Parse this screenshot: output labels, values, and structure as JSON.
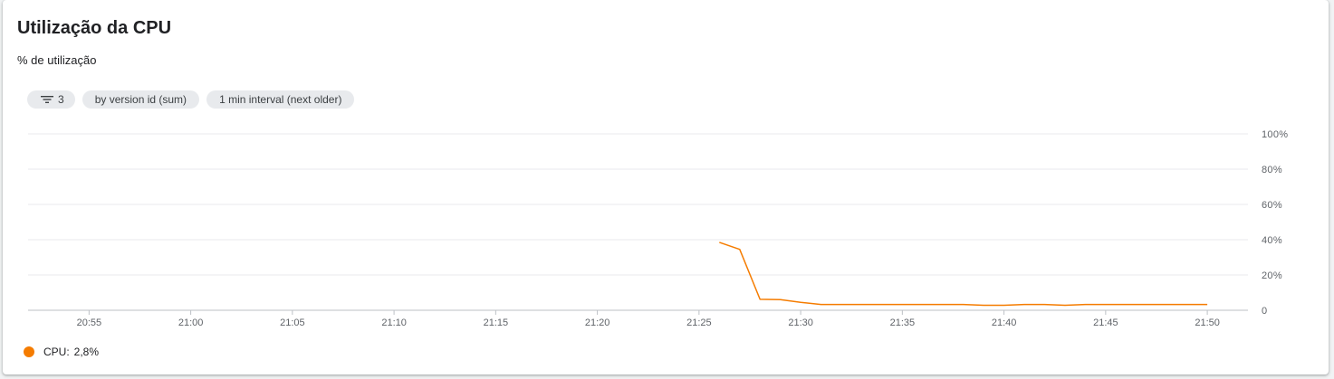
{
  "header": {
    "title": "Utilização da CPU",
    "subtitle": "% de utilização"
  },
  "chips": {
    "filter_count": "3",
    "group_by": "by version id (sum)",
    "interval": "1 min interval (next older)"
  },
  "legend": {
    "label": "CPU:",
    "value": "2,8%",
    "color": "#f57c00"
  },
  "colors": {
    "series": "#f57c00",
    "grid": "#e8eaed",
    "axis": "#bdc1c6"
  },
  "chart_data": {
    "type": "line",
    "x_tick_labels": [
      "20:55",
      "21:00",
      "21:05",
      "21:10",
      "21:15",
      "21:20",
      "21:25",
      "21:30",
      "21:35",
      "21:40",
      "21:45",
      "21:50"
    ],
    "y_tick_labels": [
      "100%",
      "80%",
      "60%",
      "40%",
      "20%",
      "0"
    ],
    "y_ticks": [
      100,
      80,
      60,
      40,
      20,
      0
    ],
    "xlim": [
      "20:52",
      "21:52"
    ],
    "ylim": [
      0,
      100
    ],
    "grid": true,
    "legend_position": "bottom-left",
    "series": [
      {
        "name": "CPU",
        "color": "#f57c00",
        "points": [
          [
            "21:26",
            38.5
          ],
          [
            "21:27",
            34.5
          ],
          [
            "21:28",
            6.2
          ],
          [
            "21:29",
            6.0
          ],
          [
            "21:30",
            4.5
          ],
          [
            "21:31",
            3.3
          ],
          [
            "21:32",
            3.3
          ],
          [
            "21:33",
            3.3
          ],
          [
            "21:34",
            3.3
          ],
          [
            "21:35",
            3.3
          ],
          [
            "21:36",
            3.3
          ],
          [
            "21:37",
            3.3
          ],
          [
            "21:38",
            3.3
          ],
          [
            "21:39",
            2.8
          ],
          [
            "21:40",
            2.8
          ],
          [
            "21:41",
            3.3
          ],
          [
            "21:42",
            3.3
          ],
          [
            "21:43",
            2.8
          ],
          [
            "21:44",
            3.3
          ],
          [
            "21:45",
            3.3
          ],
          [
            "21:46",
            3.3
          ],
          [
            "21:47",
            3.3
          ],
          [
            "21:48",
            3.3
          ],
          [
            "21:49",
            3.3
          ],
          [
            "21:50",
            3.3
          ]
        ]
      }
    ]
  }
}
